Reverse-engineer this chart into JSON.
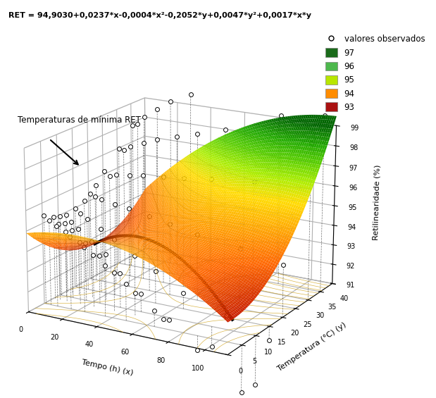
{
  "title": "RET = 94,9030+0,0237*x-0,0004*x²-0,2052*y+0,0047*y²+0,0017*x*y",
  "xlabel": "Tempo (h) (x)",
  "ylabel": "Temperatura (°C) (y)",
  "zlabel": "Retilinearidade (%)",
  "coeffs": [
    94.903,
    0.0237,
    -0.0004,
    -0.2052,
    0.0047,
    0.0017
  ],
  "legend_labels": [
    "97",
    "96",
    "95",
    "94",
    "93"
  ],
  "legend_colors": [
    "#1a6b1a",
    "#4db84d",
    "#b8e600",
    "#ff8c00",
    "#aa1111"
  ],
  "observed_label": "valores observados",
  "min_ret_label": "Temperaturas de mínima RET",
  "observed_points": [
    [
      1,
      5,
      95.4
    ],
    [
      1,
      8,
      95.1
    ],
    [
      1,
      10,
      95.0
    ],
    [
      1,
      12,
      94.9
    ],
    [
      1,
      15,
      95.0
    ],
    [
      1,
      18,
      95.2
    ],
    [
      1,
      20,
      95.4
    ],
    [
      1,
      22,
      95.7
    ],
    [
      1,
      25,
      96.2
    ],
    [
      1,
      30,
      97.0
    ],
    [
      1,
      35,
      97.9
    ],
    [
      4,
      5,
      95.2
    ],
    [
      4,
      8,
      94.8
    ],
    [
      4,
      10,
      94.7
    ],
    [
      4,
      12,
      94.6
    ],
    [
      4,
      15,
      94.8
    ],
    [
      4,
      20,
      95.3
    ],
    [
      4,
      25,
      96.0
    ],
    [
      4,
      30,
      97.0
    ],
    [
      4,
      35,
      98.0
    ],
    [
      8,
      5,
      95.0
    ],
    [
      8,
      8,
      94.5
    ],
    [
      8,
      10,
      94.4
    ],
    [
      8,
      12,
      94.3
    ],
    [
      8,
      15,
      94.6
    ],
    [
      8,
      20,
      95.2
    ],
    [
      8,
      25,
      96.1
    ],
    [
      8,
      30,
      97.2
    ],
    [
      8,
      35,
      98.4
    ],
    [
      16,
      5,
      94.6
    ],
    [
      16,
      8,
      94.1
    ],
    [
      16,
      10,
      93.9
    ],
    [
      16,
      12,
      93.8
    ],
    [
      16,
      15,
      94.2
    ],
    [
      16,
      20,
      95.1
    ],
    [
      16,
      25,
      96.2
    ],
    [
      16,
      30,
      97.5
    ],
    [
      16,
      35,
      98.9
    ],
    [
      24,
      5,
      94.2
    ],
    [
      24,
      8,
      93.6
    ],
    [
      24,
      10,
      93.4
    ],
    [
      24,
      12,
      93.3
    ],
    [
      24,
      15,
      93.8
    ],
    [
      24,
      20,
      95.0
    ],
    [
      24,
      25,
      96.3
    ],
    [
      24,
      30,
      97.8
    ],
    [
      24,
      35,
      99.4
    ],
    [
      36,
      5,
      93.5
    ],
    [
      36,
      8,
      92.9
    ],
    [
      36,
      10,
      92.7
    ],
    [
      36,
      15,
      93.2
    ],
    [
      36,
      20,
      94.8
    ],
    [
      36,
      25,
      96.4
    ],
    [
      36,
      30,
      98.1
    ],
    [
      36,
      35,
      99.9
    ],
    [
      48,
      5,
      92.8
    ],
    [
      48,
      8,
      92.1
    ],
    [
      48,
      10,
      91.9
    ],
    [
      48,
      15,
      92.6
    ],
    [
      48,
      20,
      94.6
    ],
    [
      48,
      25,
      96.5
    ],
    [
      48,
      30,
      98.4
    ],
    [
      64,
      5,
      91.8
    ],
    [
      64,
      8,
      91.1
    ],
    [
      64,
      10,
      90.9
    ],
    [
      64,
      15,
      91.8
    ],
    [
      64,
      20,
      94.3
    ],
    [
      64,
      25,
      96.7
    ],
    [
      64,
      30,
      98.8
    ],
    [
      88,
      5,
      90.3
    ],
    [
      88,
      10,
      90.0
    ],
    [
      88,
      15,
      91.1
    ],
    [
      88,
      20,
      94.0
    ],
    [
      88,
      25,
      96.9
    ],
    [
      88,
      35,
      99.5
    ],
    [
      112,
      5,
      88.7
    ],
    [
      112,
      10,
      88.6
    ],
    [
      112,
      15,
      90.3
    ],
    [
      112,
      20,
      93.6
    ],
    [
      112,
      30,
      98.8
    ],
    [
      112,
      35,
      99.8
    ]
  ]
}
